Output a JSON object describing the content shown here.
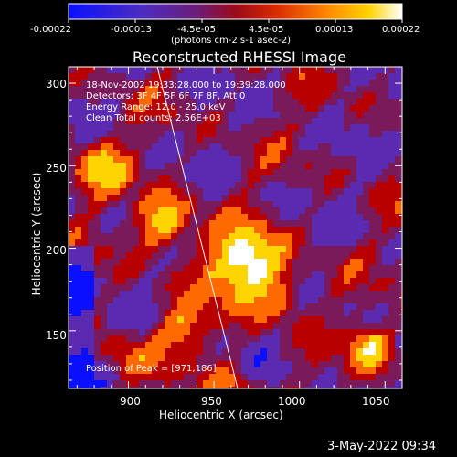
{
  "colorbar": {
    "tick_labels": [
      "-0.00022",
      "-0.00013",
      "-4.5e-05",
      "4.5e-05",
      "0.00013",
      "0.00022"
    ],
    "unit_label": "(photons cm-2 s-1 asec-2)",
    "colors": [
      "#0a10ff",
      "#5a2bb0",
      "#7a1a5a",
      "#b80000",
      "#ff6a00",
      "#ffd400",
      "#ffffff"
    ]
  },
  "image": {
    "title": "Reconstructed RHESSI Image",
    "annotations": [
      "18-Nov-2002 19:33:28.000 to 19:39:28.000",
      "Detectors: 3F 4F 5F 6F 7F 8F, Att 0",
      "Energy Range: 12.0 - 25.0 keV",
      "Clean     Total counts: 2.56E+03"
    ],
    "peak_label": "Position of Peak = [971,186]",
    "xaxis": {
      "label": "Heliocentric X (arcsec)",
      "ticks": [
        "900",
        "950",
        "1000",
        "1050"
      ],
      "range": [
        865,
        1060
      ]
    },
    "yaxis": {
      "label": "Heliocentric Y (arcsec)",
      "ticks": [
        "150",
        "200",
        "250",
        "300"
      ],
      "range": [
        115,
        310
      ]
    }
  },
  "footer": {
    "date": "3-May-2022 09:34"
  }
}
